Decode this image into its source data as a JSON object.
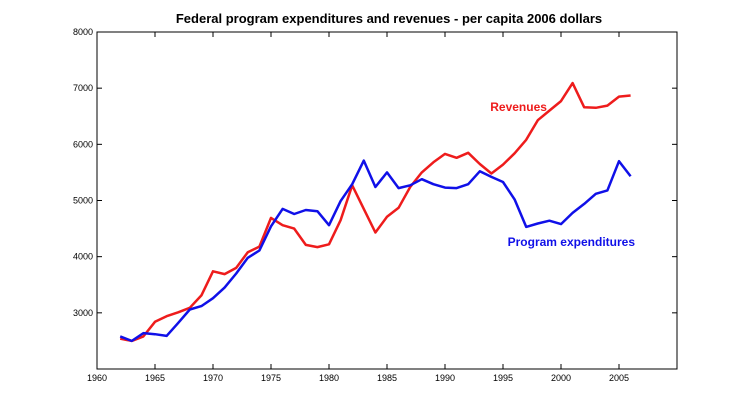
{
  "chart_data": {
    "type": "line",
    "title": "Federal program expenditures and revenues - per capita 2006 dollars",
    "xlabel": "",
    "ylabel": "",
    "xlim": [
      1960,
      2010
    ],
    "ylim": [
      2000,
      8000
    ],
    "xticks": [
      1960,
      1965,
      1970,
      1975,
      1980,
      1985,
      1990,
      1995,
      2000,
      2005
    ],
    "yticks": [
      3000,
      4000,
      5000,
      6000,
      7000,
      8000
    ],
    "grid": false,
    "series": [
      {
        "name": "Revenues",
        "color": "#ee1c1c",
        "x": [
          1962,
          1963,
          1964,
          1965,
          1966,
          1967,
          1968,
          1969,
          1970,
          1971,
          1972,
          1973,
          1974,
          1975,
          1976,
          1977,
          1978,
          1979,
          1980,
          1981,
          1982,
          1983,
          1984,
          1985,
          1986,
          1987,
          1988,
          1989,
          1990,
          1991,
          1992,
          1993,
          1994,
          1995,
          1996,
          1997,
          1998,
          1999,
          2000,
          2001,
          2002,
          2003,
          2004,
          2005,
          2006
        ],
        "values": [
          2540,
          2500,
          2580,
          2840,
          2940,
          3010,
          3090,
          3310,
          3740,
          3690,
          3800,
          4080,
          4180,
          4690,
          4560,
          4500,
          4210,
          4170,
          4220,
          4650,
          5270,
          4850,
          4430,
          4710,
          4870,
          5240,
          5500,
          5680,
          5830,
          5760,
          5850,
          5650,
          5480,
          5640,
          5840,
          6080,
          6430,
          6600,
          6770,
          7090,
          6660,
          6650,
          6690,
          6850,
          6870
        ]
      },
      {
        "name": "Program expenditures",
        "color": "#1010e8",
        "x": [
          1962,
          1963,
          1964,
          1965,
          1966,
          1967,
          1968,
          1969,
          1970,
          1971,
          1972,
          1973,
          1974,
          1975,
          1976,
          1977,
          1978,
          1979,
          1980,
          1981,
          1982,
          1983,
          1984,
          1985,
          1986,
          1987,
          1988,
          1989,
          1990,
          1991,
          1992,
          1993,
          1994,
          1995,
          1996,
          1997,
          1998,
          1999,
          2000,
          2001,
          2002,
          2003,
          2004,
          2005,
          2006
        ],
        "values": [
          2580,
          2500,
          2640,
          2620,
          2590,
          2820,
          3060,
          3120,
          3260,
          3450,
          3700,
          3980,
          4110,
          4540,
          4850,
          4760,
          4830,
          4810,
          4560,
          4990,
          5290,
          5710,
          5240,
          5500,
          5220,
          5270,
          5380,
          5290,
          5230,
          5220,
          5290,
          5520,
          5420,
          5330,
          5020,
          4530,
          4590,
          4640,
          4580,
          4780,
          4940,
          5120,
          5180,
          5700,
          5430
        ]
      }
    ],
    "annotations": [
      {
        "text": "Revenues",
        "x": 1993.9,
        "y": 6590,
        "color": "#ee1c1c"
      },
      {
        "text": "Program expenditures",
        "x": 1995.4,
        "y": 4190,
        "color": "#1010e8"
      }
    ]
  }
}
